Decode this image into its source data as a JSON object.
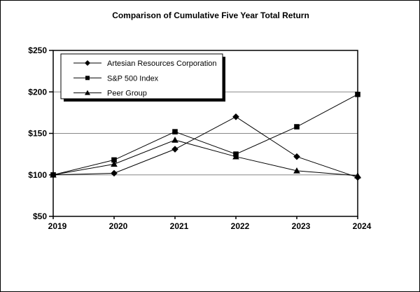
{
  "title": "Comparison of Cumulative Five Year Total Return",
  "chart_data": {
    "type": "line",
    "title": "Comparison of Cumulative Five Year Total Return",
    "x_labels": [
      "2019",
      "2020",
      "2021",
      "2022",
      "2023",
      "2024"
    ],
    "series": [
      {
        "name": "Artesian Resources Corporation",
        "marker": "diamond",
        "values": [
          100,
          102,
          131,
          170,
          122,
          97
        ]
      },
      {
        "name": "S&P 500 Index",
        "marker": "square",
        "values": [
          100,
          118,
          152,
          125,
          158,
          197
        ]
      },
      {
        "name": "Peer Group",
        "marker": "triangle",
        "values": [
          100,
          113,
          142,
          122,
          105,
          99
        ]
      }
    ],
    "ylim": [
      50,
      250
    ],
    "ytick_interval": 50,
    "ytick_labels": [
      "$50",
      "$100",
      "$150",
      "$200",
      "$250"
    ],
    "gridlines_at": [
      100,
      150,
      200
    ],
    "legend_position": "top-left",
    "colors": {
      "line": "#000000",
      "grid": "#888888",
      "background": "#ffffff",
      "border": "#000000",
      "text": "#000000",
      "legend_shadow": "#000000"
    }
  }
}
